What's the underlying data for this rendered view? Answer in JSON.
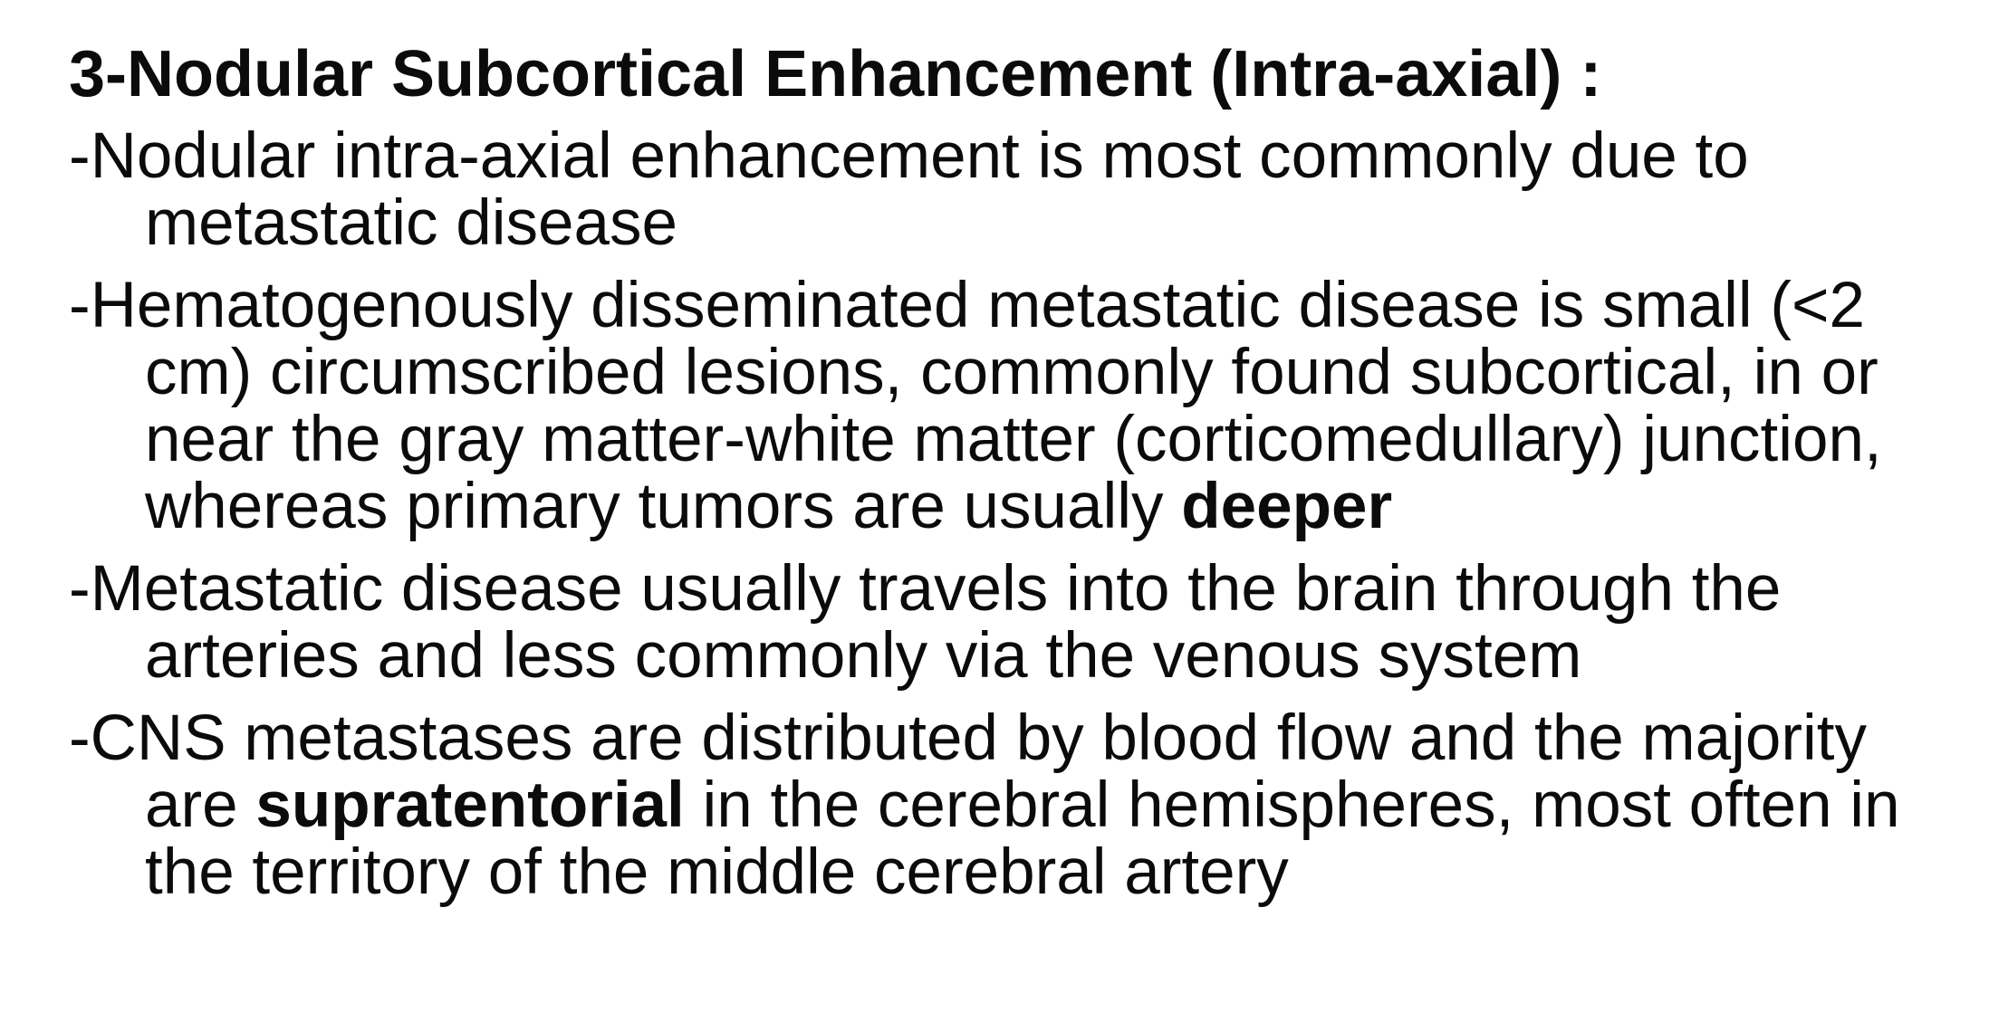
{
  "heading": "3-Nodular Subcortical Enhancement (Intra-axial) :",
  "bullets": [
    {
      "before": "-Nodular intra-axial enhancement is most commonly due to metastatic disease",
      "bold": "",
      "after": ""
    },
    {
      "before": "-Hematogenously disseminated metastatic disease is small (<2 cm) circumscribed lesions, commonly found subcortical, in or near the gray matter-white matter (corticomedullary) junction, whereas primary tumors are usually ",
      "bold": "deeper",
      "after": ""
    },
    {
      "before": "-Metastatic disease usually travels into the brain through the arteries and less commonly via the venous system",
      "bold": "",
      "after": ""
    },
    {
      "before": "-CNS metastases are distributed by blood flow and the majority are ",
      "bold": "supratentorial",
      "after": " in the cerebral hemispheres, most often in the territory of the middle cerebral artery"
    }
  ]
}
